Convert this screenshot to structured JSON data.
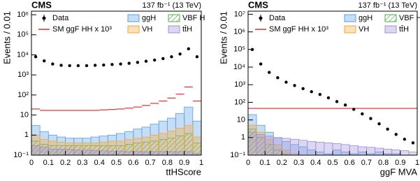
{
  "chart_data": [
    {
      "type": "histogram",
      "title": "CMS",
      "subtitle": "137 fb⁻¹ (13 TeV)",
      "xlabel": "ttHScore",
      "ylabel": "Events / 0.01",
      "log_y": true,
      "xlim": [
        0,
        1
      ],
      "ylim": [
        0.1,
        1500000
      ],
      "xticks": [
        0,
        0.1,
        0.2,
        0.3,
        0.4,
        0.5,
        0.6,
        0.7,
        0.8,
        0.9,
        1
      ],
      "yticks": [
        {
          "value": 0.1,
          "label": "10⁻¹"
        },
        1,
        10,
        {
          "value": 100,
          "label": "10²"
        },
        {
          "value": 1000,
          "label": "10³"
        },
        {
          "value": 10000,
          "label": "10⁴"
        },
        {
          "value": 100000,
          "label": "10⁵"
        },
        {
          "value": 1000000,
          "label": "10⁶"
        }
      ],
      "bins": [
        0,
        0.05,
        0.1,
        0.15,
        0.2,
        0.25,
        0.3,
        0.35,
        0.4,
        0.45,
        0.5,
        0.55,
        0.6,
        0.65,
        0.7,
        0.75,
        0.8,
        0.85,
        0.9,
        0.95,
        1
      ],
      "series": [
        {
          "name": "Data",
          "style": "points",
          "color": "#000000",
          "values": [
            8000,
            5000,
            3500,
            3000,
            2900,
            2900,
            2900,
            3000,
            3100,
            3300,
            3500,
            3800,
            4200,
            4800,
            5500,
            6500,
            8000,
            11000,
            20000,
            8000
          ]
        },
        {
          "name": "SM ggF HH x 10³",
          "style": "line",
          "color": "#e03030",
          "values": [
            20,
            17,
            17,
            17,
            17,
            17,
            17,
            17,
            18,
            19,
            20,
            22,
            25,
            30,
            38,
            50,
            70,
            110,
            250,
            50
          ]
        },
        {
          "name": "ggH",
          "style": "fill",
          "color": "#5c9ee6",
          "values": [
            3,
            1.5,
            1,
            0.8,
            0.7,
            0.7,
            0.7,
            0.8,
            0.9,
            1,
            1.2,
            1.5,
            2,
            2.5,
            3.5,
            5,
            7,
            12,
            25,
            5
          ]
        },
        {
          "name": "VBF H",
          "style": "fill",
          "hatch": true,
          "color": "#4daf4a",
          "values": [
            0.5,
            0.35,
            0.3,
            0.3,
            0.3,
            0.3,
            0.3,
            0.3,
            0.3,
            0.3,
            0.3,
            0.35,
            0.4,
            0.45,
            0.5,
            0.6,
            0.7,
            0.9,
            1.2,
            0.4
          ]
        },
        {
          "name": "VH",
          "style": "fill",
          "color": "#f2a93b",
          "values": [
            1,
            0.6,
            0.5,
            0.45,
            0.4,
            0.4,
            0.4,
            0.4,
            0.45,
            0.5,
            0.5,
            0.6,
            0.7,
            0.8,
            1,
            1.2,
            1.6,
            2.2,
            3,
            0.8
          ]
        },
        {
          "name": "tt̄H",
          "style": "fill",
          "color": "#9e8fd8",
          "values": [
            0.3,
            0.25,
            0.2,
            0.2,
            0.2,
            0.18,
            0.18,
            0.17,
            0.17,
            0.16,
            0.16,
            0.15,
            0.15,
            0.15,
            0.15,
            0.15,
            0.15,
            0.15,
            0.15,
            0.12
          ]
        }
      ]
    },
    {
      "type": "histogram",
      "title": "CMS",
      "subtitle": "137 fb⁻¹ (13 TeV)",
      "xlabel": "ggF MVA",
      "ylabel": "Events / 0.01",
      "log_y": true,
      "xlim": [
        0,
        1
      ],
      "ylim": [
        0.1,
        15000000
      ],
      "xticks": [
        0,
        0.1,
        0.2,
        0.3,
        0.4,
        0.5,
        0.6,
        0.7,
        0.8,
        0.9,
        1
      ],
      "yticks": [
        {
          "value": 0.1,
          "label": "10⁻¹"
        },
        1,
        10,
        {
          "value": 100,
          "label": "10²"
        },
        {
          "value": 1000,
          "label": "10³"
        },
        {
          "value": 10000,
          "label": "10⁴"
        },
        {
          "value": 100000,
          "label": "10⁵"
        },
        {
          "value": 1000000,
          "label": "10⁶"
        },
        {
          "value": 10000000,
          "label": "10⁷"
        }
      ],
      "bins": [
        0,
        0.05,
        0.1,
        0.15,
        0.2,
        0.25,
        0.3,
        0.35,
        0.4,
        0.45,
        0.5,
        0.55,
        0.6,
        0.65,
        0.7,
        0.75,
        0.8,
        0.85,
        0.9,
        0.95,
        1
      ],
      "series": [
        {
          "name": "Data",
          "style": "points",
          "color": "#000000",
          "values": [
            100000,
            15000,
            5000,
            2500,
            1400,
            900,
            600,
            400,
            280,
            180,
            110,
            70,
            40,
            22,
            12,
            6,
            3,
            1.5,
            0.8,
            0.5
          ]
        },
        {
          "name": "SM ggF HH x 10³",
          "style": "line",
          "color": "#e03030",
          "values": [
            45,
            45,
            45,
            45,
            45,
            45,
            45,
            45,
            45,
            45,
            45,
            45,
            45,
            45,
            45,
            45,
            45,
            45,
            45,
            45
          ]
        },
        {
          "name": "ggH",
          "style": "fill",
          "color": "#5c9ee6",
          "values": [
            20,
            5,
            2,
            1,
            0.6,
            0.4,
            0.3,
            0.2,
            0.15,
            0.12,
            0.2,
            0.15,
            0.12,
            0.15,
            0.12,
            0.15,
            0.12,
            0.12,
            0.1,
            0.1
          ]
        },
        {
          "name": "VBF H",
          "style": "fill",
          "hatch": true,
          "color": "#4daf4a",
          "values": [
            3,
            1,
            0.4,
            0.2,
            0.12,
            0.1,
            0.1,
            0.1,
            0.1,
            0.1,
            0.1,
            0.1,
            0.1,
            0.1,
            0.1,
            0.1,
            0.1,
            0.1,
            0.1,
            0.1
          ]
        },
        {
          "name": "VH",
          "style": "fill",
          "color": "#f2a93b",
          "values": [
            5,
            2,
            0.8,
            0.4,
            0.2,
            0.12,
            0.1,
            0.1,
            0.1,
            0.1,
            0.1,
            0.1,
            0.1,
            0.1,
            0.1,
            0.1,
            0.1,
            0.1,
            0.1,
            0.1
          ]
        },
        {
          "name": "tt̄H",
          "style": "fill",
          "color": "#9e8fd8",
          "values": [
            2,
            1.5,
            1.2,
            1,
            0.9,
            0.8,
            0.7,
            0.6,
            0.55,
            0.5,
            0.45,
            0.4,
            0.35,
            0.3,
            0.28,
            0.25,
            0.22,
            0.2,
            0.18,
            0.15
          ]
        }
      ]
    }
  ]
}
